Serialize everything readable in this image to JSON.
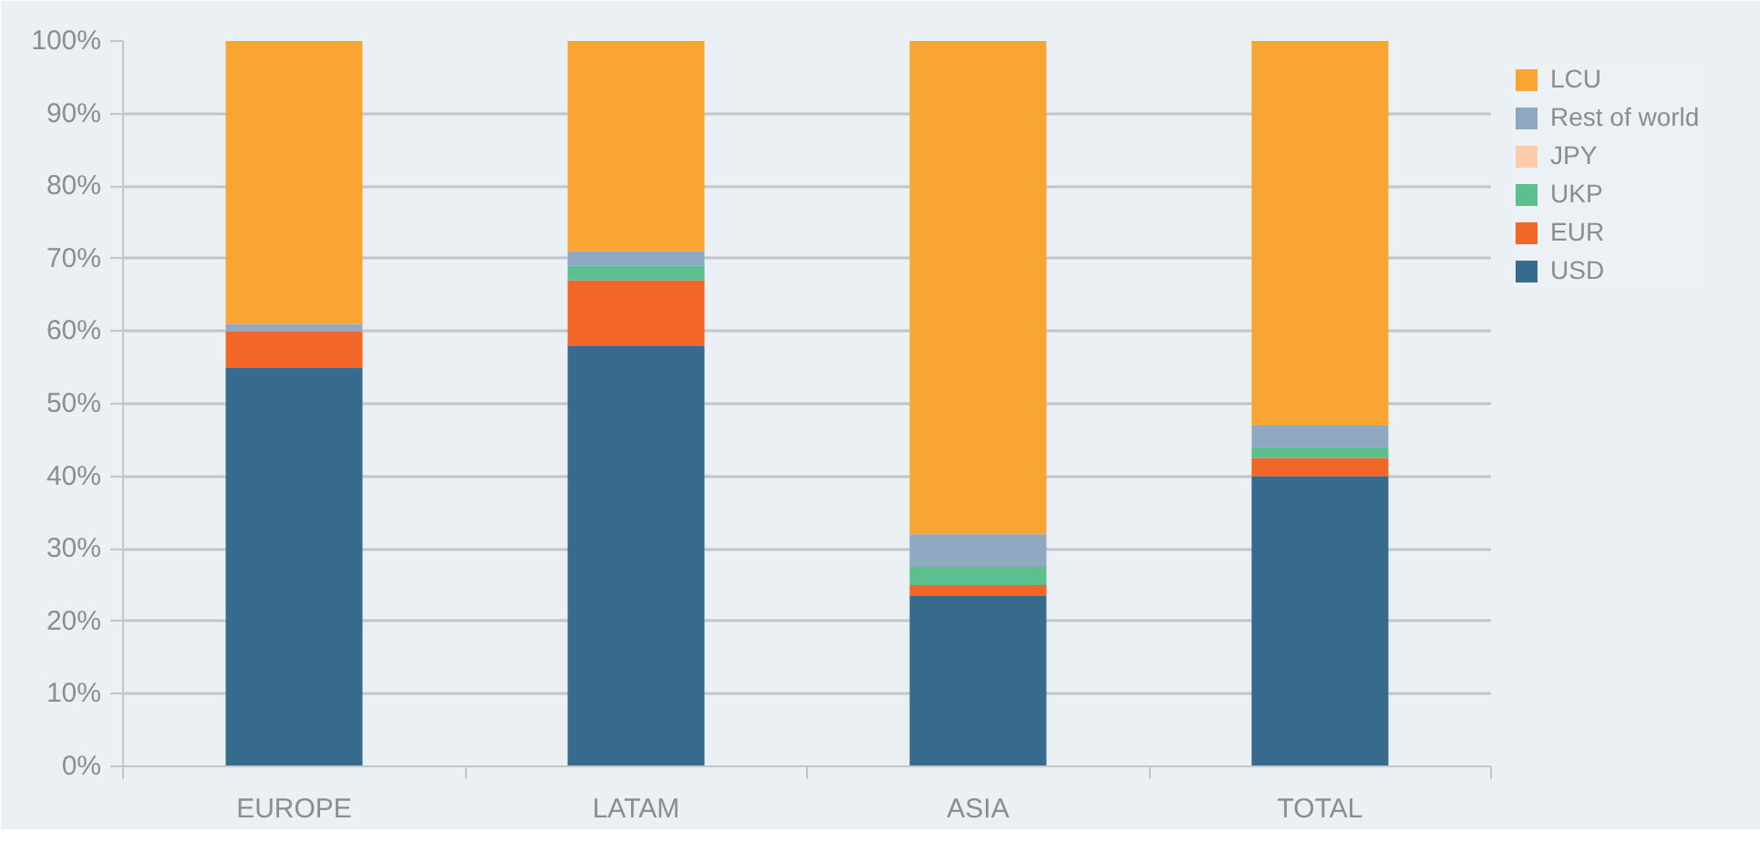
{
  "chart_data": {
    "type": "bar",
    "stacked": true,
    "categories": [
      "EUROPE",
      "LATAM",
      "ASIA",
      "TOTAL"
    ],
    "series": [
      {
        "name": "USD",
        "color": "#366b8e",
        "values": [
          55,
          58,
          23.5,
          40
        ]
      },
      {
        "name": "EUR",
        "color": "#f26727",
        "values": [
          5,
          9,
          1.5,
          2.5
        ]
      },
      {
        "name": "UKP",
        "color": "#5bbf8e",
        "values": [
          0,
          2,
          2.5,
          1.5
        ]
      },
      {
        "name": "JPY",
        "color": "#fbcbac",
        "values": [
          0,
          0,
          0,
          0
        ]
      },
      {
        "name": "Rest of world",
        "color": "#8ea9c1",
        "values": [
          1,
          2,
          4.5,
          3
        ]
      },
      {
        "name": "LCU",
        "color": "#f9a533",
        "values": [
          39,
          29,
          68,
          53
        ]
      }
    ],
    "ylim": [
      0,
      100
    ],
    "yticks": [
      {
        "value": 0,
        "label": "0%"
      },
      {
        "value": 10,
        "label": "10%"
      },
      {
        "value": 20,
        "label": "20%"
      },
      {
        "value": 30,
        "label": "30%"
      },
      {
        "value": 40,
        "label": "40%"
      },
      {
        "value": 50,
        "label": "50%"
      },
      {
        "value": 60,
        "label": "60%"
      },
      {
        "value": 70,
        "label": "70%"
      },
      {
        "value": 80,
        "label": "80%"
      },
      {
        "value": 90,
        "label": "90%"
      },
      {
        "value": 100,
        "label": "100%"
      }
    ],
    "grid": "y",
    "legend": "top right"
  }
}
